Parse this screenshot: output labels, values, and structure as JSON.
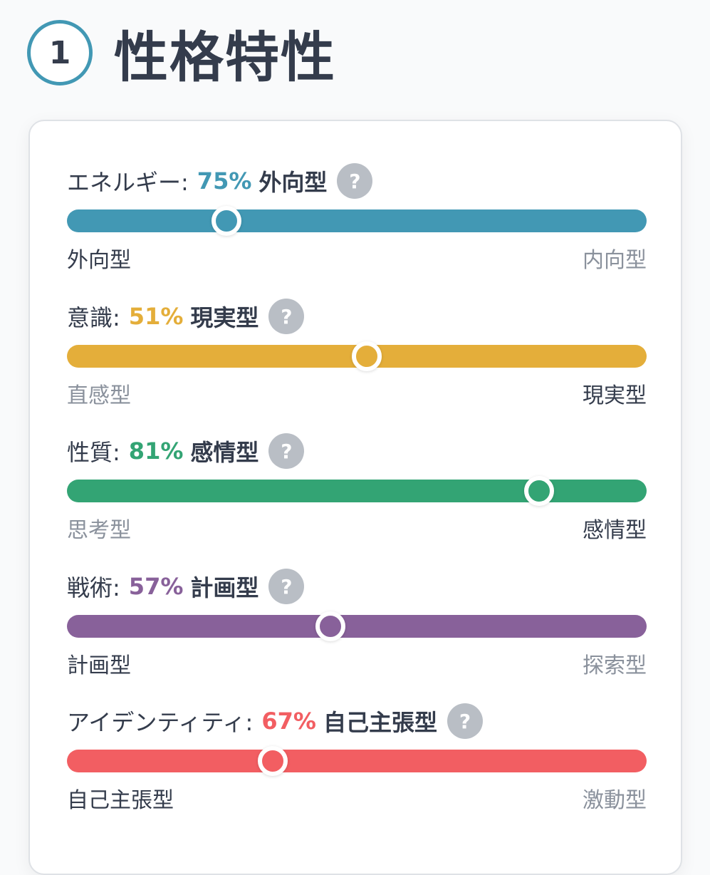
{
  "header": {
    "step": "1",
    "title": "性格特性"
  },
  "traits": [
    {
      "name": "エネルギー: ",
      "percent": "75%",
      "type": "外向型",
      "color": "#4298b4",
      "knob_position": 0.275,
      "left_label": "外向型",
      "right_label": "内向型",
      "active_side": "left",
      "help_icon": "question-icon"
    },
    {
      "name": "意識: ",
      "percent": "51%",
      "type": "現実型",
      "color": "#e4ae3a",
      "knob_position": 0.517,
      "left_label": "直感型",
      "right_label": "現実型",
      "active_side": "right",
      "help_icon": "question-icon"
    },
    {
      "name": "性質: ",
      "percent": "81%",
      "type": "感情型",
      "color": "#33a474",
      "knob_position": 0.815,
      "left_label": "思考型",
      "right_label": "感情型",
      "active_side": "right",
      "help_icon": "question-icon"
    },
    {
      "name": "戦術: ",
      "percent": "57%",
      "type": "計画型",
      "color": "#88619a",
      "knob_position": 0.454,
      "left_label": "計画型",
      "right_label": "探索型",
      "active_side": "left",
      "help_icon": "question-icon"
    },
    {
      "name": "アイデンティティ: ",
      "percent": "67%",
      "type": "自己主張型",
      "color": "#f25e62",
      "knob_position": 0.355,
      "left_label": "自己主張型",
      "right_label": "激動型",
      "active_side": "left",
      "help_icon": "question-icon"
    }
  ]
}
